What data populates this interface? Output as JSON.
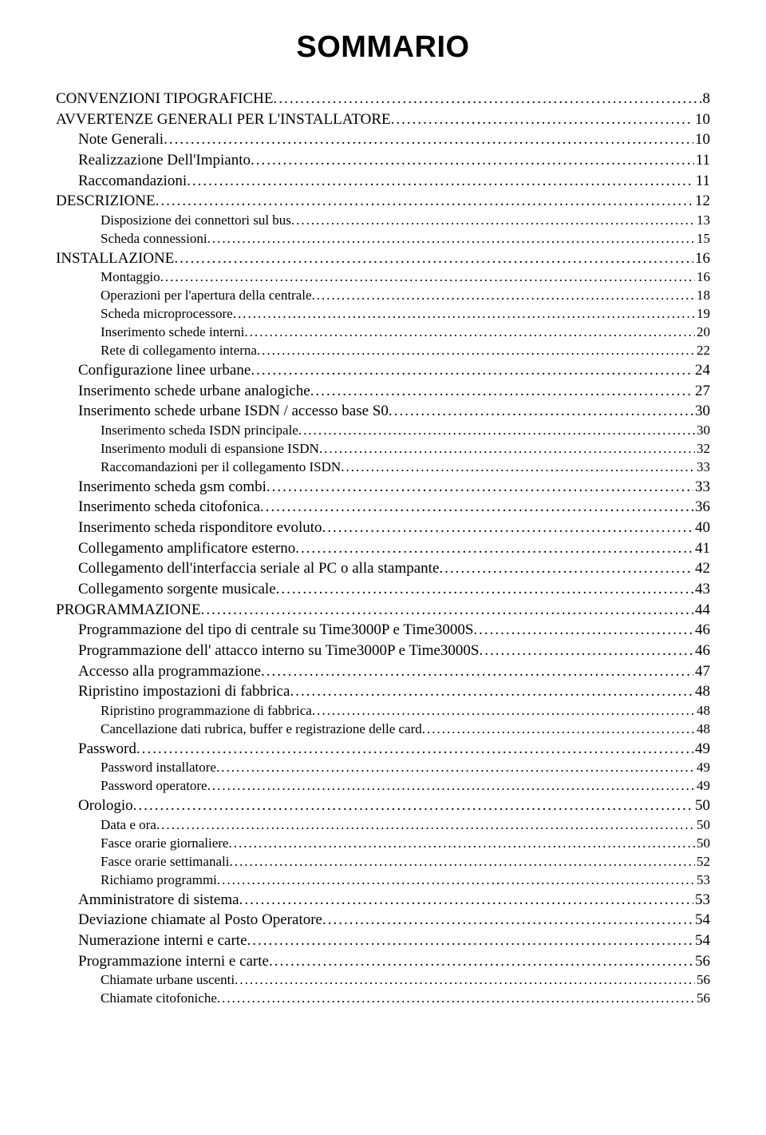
{
  "title": "SOMMARIO",
  "entries": [
    {
      "level": 0,
      "label": "CONVENZIONI TIPOGRAFICHE",
      "page": "8"
    },
    {
      "level": 0,
      "label": "AVVERTENZE GENERALI PER L'INSTALLATORE",
      "page": "10"
    },
    {
      "level": 1,
      "label": "Note Generali",
      "page": "10"
    },
    {
      "level": 1,
      "label": "Realizzazione Dell'Impianto",
      "page": "11"
    },
    {
      "level": 1,
      "label": "Raccomandazioni",
      "page": "11"
    },
    {
      "level": 0,
      "label": "DESCRIZIONE",
      "page": "12"
    },
    {
      "level": 2,
      "label": "Disposizione dei connettori sul bus",
      "page": "13"
    },
    {
      "level": 2,
      "label": "Scheda connessioni",
      "page": "15"
    },
    {
      "level": 0,
      "label": "INSTALLAZIONE",
      "page": "16"
    },
    {
      "level": 2,
      "label": "Montaggio",
      "page": "16"
    },
    {
      "level": 2,
      "label": "Operazioni per l'apertura della centrale",
      "page": "18"
    },
    {
      "level": 2,
      "label": "Scheda microprocessore",
      "page": "19"
    },
    {
      "level": 2,
      "label": "Inserimento schede interni",
      "page": "20"
    },
    {
      "level": 2,
      "label": "Rete di collegamento interna",
      "page": "22"
    },
    {
      "level": 1,
      "label": "Configurazione linee urbane",
      "page": "24"
    },
    {
      "level": 1,
      "label": "Inserimento schede urbane analogiche",
      "page": "27"
    },
    {
      "level": 1,
      "label": "Inserimento schede urbane ISDN / accesso base S0",
      "page": "30"
    },
    {
      "level": 2,
      "label": "Inserimento scheda ISDN principale",
      "page": "30"
    },
    {
      "level": 2,
      "label": "Inserimento moduli di espansione ISDN",
      "page": "32"
    },
    {
      "level": 2,
      "label": "Raccomandazioni per il collegamento ISDN",
      "page": "33"
    },
    {
      "level": 1,
      "label": "Inserimento scheda gsm combi",
      "page": "33"
    },
    {
      "level": 1,
      "label": "Inserimento scheda citofonica",
      "page": "36"
    },
    {
      "level": 1,
      "label": "Inserimento scheda risponditore evoluto",
      "page": "40"
    },
    {
      "level": 1,
      "label": "Collegamento amplificatore esterno",
      "page": "41"
    },
    {
      "level": 1,
      "label": "Collegamento dell'interfaccia seriale al PC o alla stampante",
      "page": "42"
    },
    {
      "level": 1,
      "label": "Collegamento sorgente musicale",
      "page": "43"
    },
    {
      "level": 0,
      "label": "PROGRAMMAZIONE",
      "page": "44"
    },
    {
      "level": 1,
      "label": "Programmazione del tipo di centrale su Time3000P e Time3000S",
      "page": "46"
    },
    {
      "level": 1,
      "label": "Programmazione dell' attacco interno su Time3000P e Time3000S",
      "page": "46"
    },
    {
      "level": 1,
      "label": "Accesso alla programmazione",
      "page": "47"
    },
    {
      "level": 1,
      "label": "Ripristino impostazioni di fabbrica",
      "page": "48"
    },
    {
      "level": 2,
      "label": "Ripristino programmazione di fabbrica",
      "page": "48"
    },
    {
      "level": 2,
      "label": "Cancellazione dati rubrica, buffer e registrazione delle card",
      "page": "48"
    },
    {
      "level": 1,
      "label": "Password",
      "page": "49"
    },
    {
      "level": 2,
      "label": "Password installatore",
      "page": "49"
    },
    {
      "level": 2,
      "label": "Password operatore",
      "page": "49"
    },
    {
      "level": 1,
      "label": "Orologio",
      "page": "50"
    },
    {
      "level": 2,
      "label": "Data e ora",
      "page": "50"
    },
    {
      "level": 2,
      "label": "Fasce orarie giornaliere",
      "page": "50"
    },
    {
      "level": 2,
      "label": "Fasce orarie settimanali",
      "page": "52"
    },
    {
      "level": 2,
      "label": "Richiamo programmi",
      "page": "53"
    },
    {
      "level": 1,
      "label": "Amministratore di sistema",
      "page": "53"
    },
    {
      "level": 1,
      "label": "Deviazione chiamate al Posto Operatore",
      "page": "54"
    },
    {
      "level": 1,
      "label": "Numerazione interni e carte",
      "page": "54"
    },
    {
      "level": 1,
      "label": "Programmazione interni e carte",
      "page": "56"
    },
    {
      "level": 2,
      "label": "Chiamate urbane uscenti",
      "page": "56"
    },
    {
      "level": 2,
      "label": "Chiamate citofoniche",
      "page": "56"
    }
  ]
}
